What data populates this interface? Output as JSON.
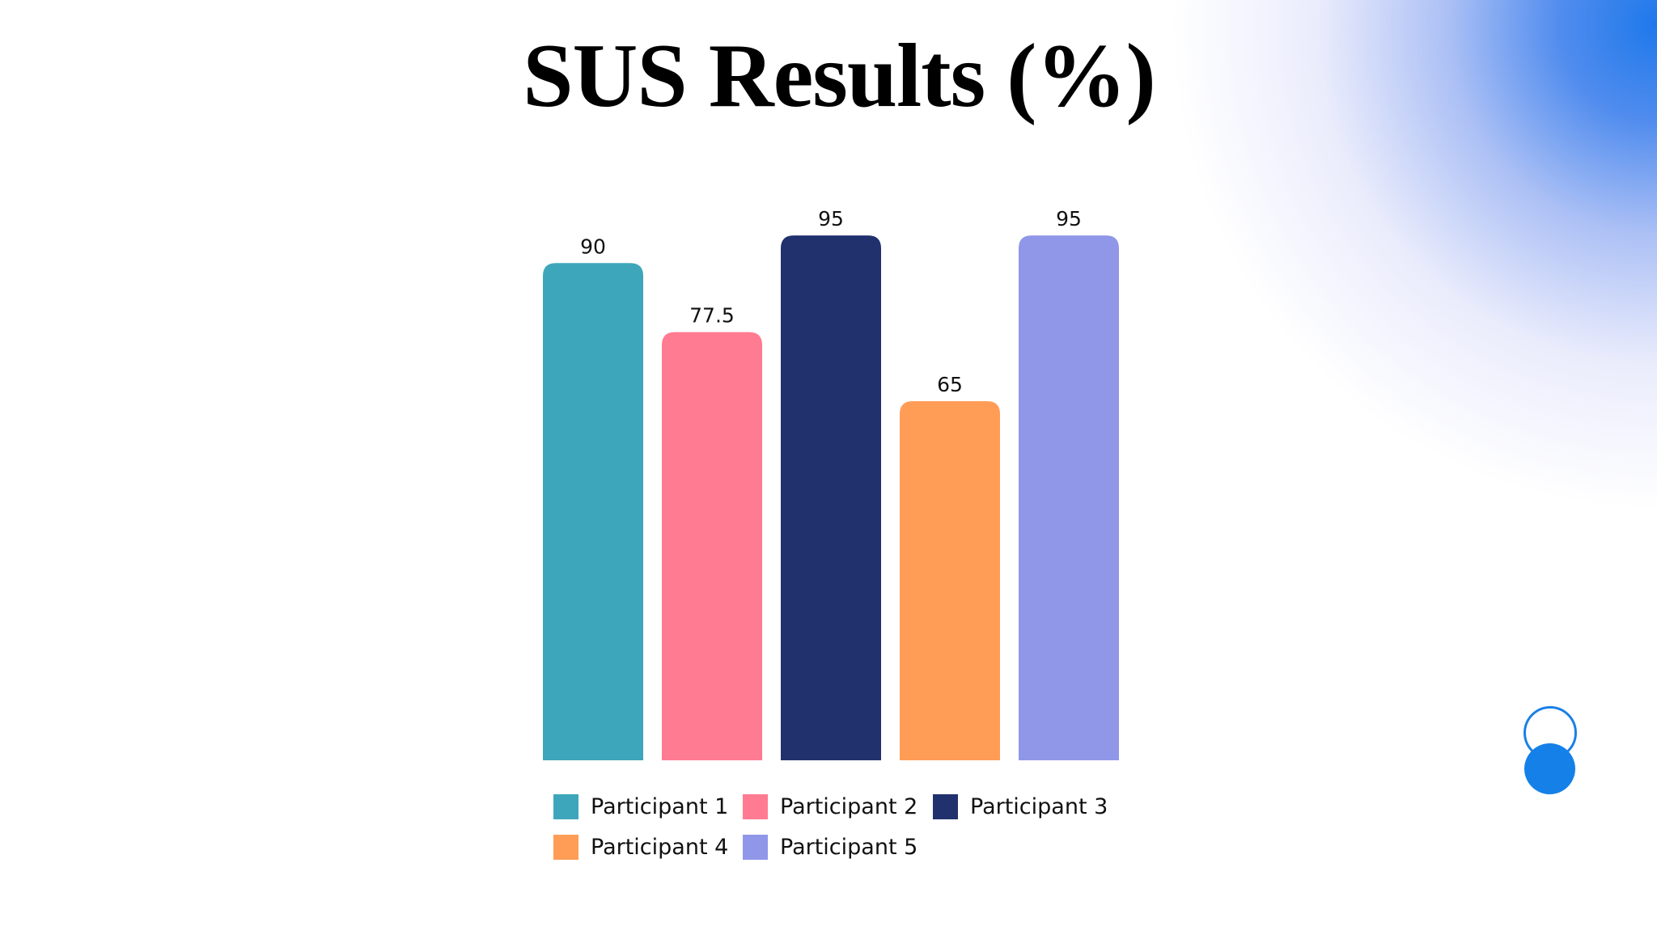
{
  "chart_data": {
    "type": "bar",
    "title": "SUS Results (%)",
    "categories": [
      "Participant 1",
      "Participant 2",
      "Participant 3",
      "Participant 4",
      "Participant 5"
    ],
    "values": [
      90,
      77.5,
      95,
      65,
      95
    ],
    "data_labels": [
      "90",
      "77.5",
      "95",
      "65",
      "95"
    ],
    "colors": [
      "#3ea6bb",
      "#ff7b91",
      "#21316e",
      "#ff9d57",
      "#9097e8"
    ],
    "xlabel": "",
    "ylabel": "",
    "ylim": [
      0,
      100
    ],
    "grid": false,
    "axes_visible": false,
    "legend_position": "bottom"
  },
  "decorations": {
    "accent_color": "#1580e8"
  }
}
